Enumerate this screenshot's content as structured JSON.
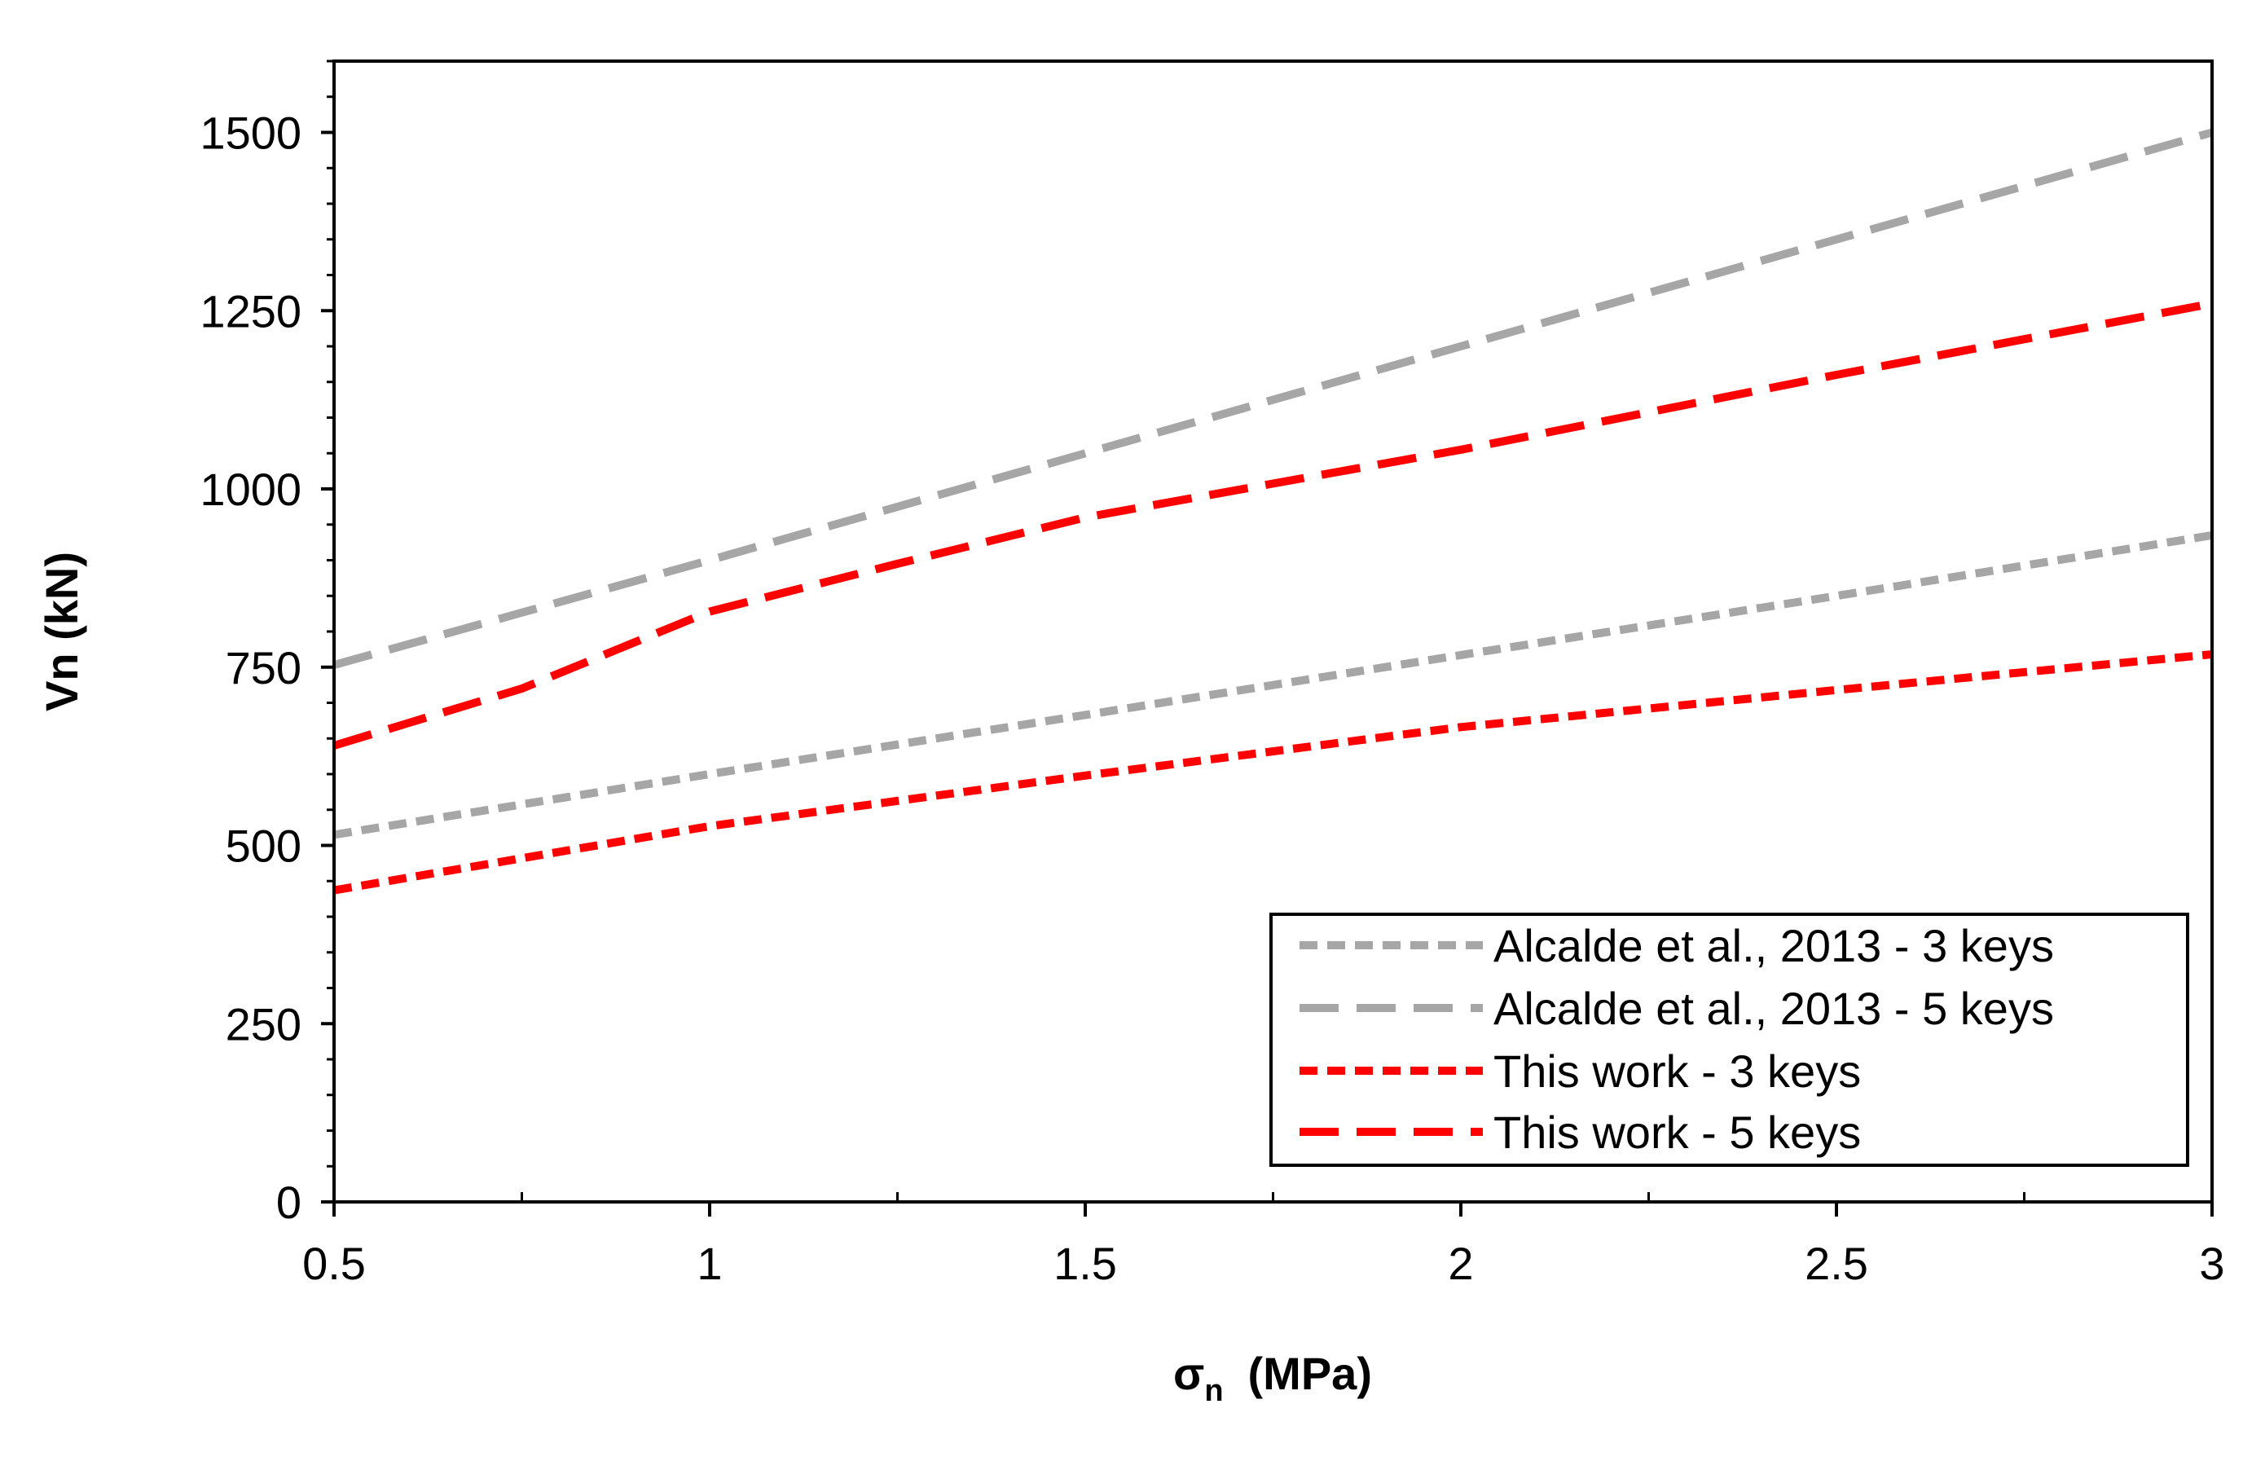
{
  "chart_data": {
    "type": "line",
    "title": "",
    "xlabel": "σ",
    "xlabel_sub": "n",
    "xlabel_units": "(MPa)",
    "ylabel": "Vn (kN)",
    "xlim": [
      0.5,
      3
    ],
    "ylim": [
      0,
      1600
    ],
    "x_ticks": [
      0.5,
      1,
      1.5,
      2,
      2.5,
      3
    ],
    "x_tick_labels": [
      "0.5",
      "1",
      "1.5",
      "2",
      "2.5",
      "3"
    ],
    "x_minor_step": 0.25,
    "y_ticks": [
      0,
      250,
      500,
      750,
      1000,
      1250,
      1500
    ],
    "y_tick_labels": [
      "0",
      "250",
      "500",
      "750",
      "1000",
      "1250",
      "1500"
    ],
    "y_minor_step": 50,
    "grid": false,
    "legend_position": "bottom-right",
    "series": [
      {
        "name": "Alcalde et al., 2013 - 3 keys",
        "color": "#a6a6a6",
        "dash": "short",
        "x": [
          0.5,
          1,
          1.5,
          2,
          2.5,
          3
        ],
        "y": [
          515,
          600,
          683,
          767,
          850,
          935
        ]
      },
      {
        "name": "Alcalde et al., 2013 - 5 keys",
        "color": "#a6a6a6",
        "dash": "long",
        "x": [
          0.5,
          1,
          1.5,
          2,
          2.5,
          3
        ],
        "y": [
          753,
          900,
          1050,
          1200,
          1350,
          1500
        ]
      },
      {
        "name": "This work - 3 keys",
        "color": "#ff0000",
        "dash": "short",
        "x": [
          0.5,
          1,
          1.5,
          2,
          2.5,
          3
        ],
        "y": [
          437,
          527,
          598,
          666,
          718,
          768
        ]
      },
      {
        "name": "This work - 5 keys",
        "color": "#ff0000",
        "dash": "long",
        "x": [
          0.5,
          0.75,
          1,
          1.25,
          1.5,
          2,
          2.5,
          3
        ],
        "y": [
          640,
          720,
          828,
          895,
          960,
          1055,
          1160,
          1260
        ]
      }
    ]
  }
}
